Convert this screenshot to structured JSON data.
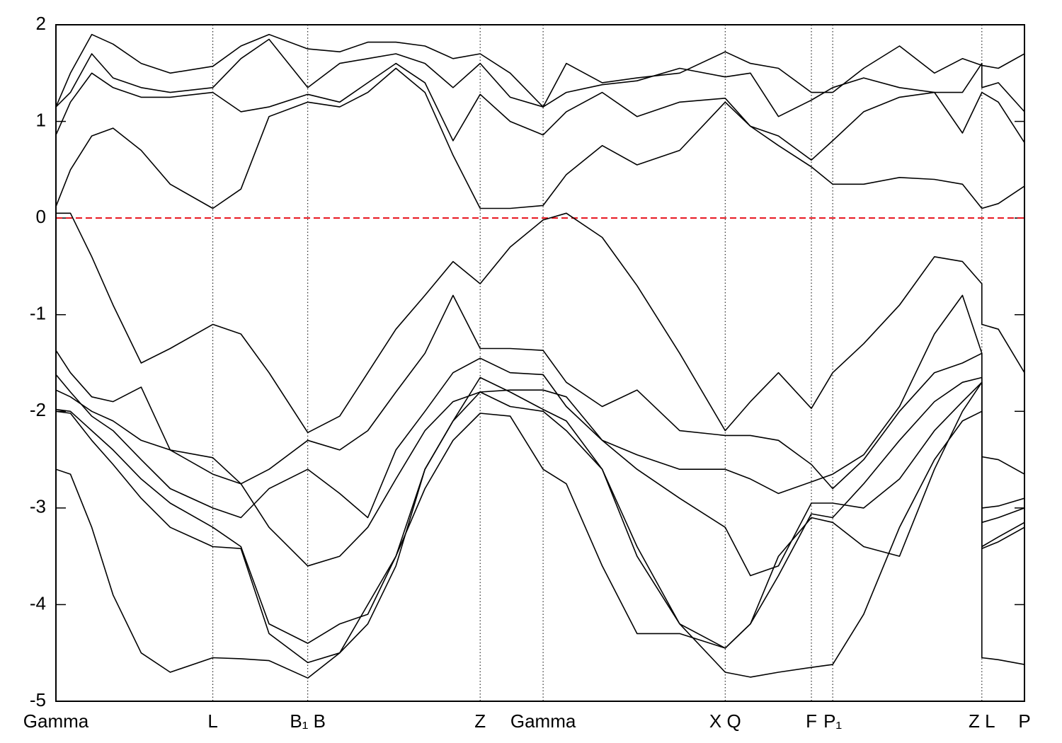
{
  "chart_data": {
    "type": "line",
    "x": [
      0,
      0.015,
      0.037,
      0.059,
      0.088,
      0.118,
      0.162,
      0.191,
      0.22,
      0.26,
      0.293,
      0.322,
      0.351,
      0.381,
      0.41,
      0.438,
      0.469,
      0.503,
      0.527,
      0.564,
      0.6,
      0.644,
      0.691,
      0.717,
      0.746,
      0.78,
      0.802,
      0.834,
      0.871,
      0.907,
      0.936,
      0.956,
      0.956,
      0.973,
      1
    ],
    "xlim": [
      0,
      1
    ],
    "xticks": [
      {
        "value": 0,
        "label": "Gamma"
      },
      {
        "value": 0.162,
        "label": "L"
      },
      {
        "value": 0.26,
        "label": "B₁ B"
      },
      {
        "value": 0.438,
        "label": "Z"
      },
      {
        "value": 0.503,
        "label": "Gamma"
      },
      {
        "value": 0.691,
        "label": "X Q"
      },
      {
        "value": 0.78,
        "label": "F"
      },
      {
        "value": 0.802,
        "label": "P₁"
      },
      {
        "value": 0.956,
        "label": "Z L"
      },
      {
        "value": 1,
        "label": "P"
      }
    ],
    "ylim": [
      -5,
      2
    ],
    "yticks": [
      -5,
      -4,
      -3,
      -2,
      -1,
      0,
      1,
      2
    ],
    "xgrid": true,
    "hline": {
      "value": 0,
      "color": "#e8101a",
      "dashed": true
    },
    "series": [
      {
        "color": "#000000",
        "values": [
          0.05,
          0.05,
          -0.4,
          -0.9,
          -1.5,
          -1.35,
          -1.1,
          -1.2,
          -1.6,
          -2.22,
          -2.05,
          -1.6,
          -1.15,
          -0.8,
          -0.45,
          -0.68,
          -0.3,
          -0.02,
          0.05,
          -0.2,
          -0.7,
          -1.4,
          -2.2,
          -1.9,
          -1.6,
          -1.97,
          -1.6,
          -1.3,
          -0.9,
          -0.4,
          -0.45,
          -0.68,
          -1.1,
          -1.15,
          -1.6
        ]
      },
      {
        "color": "#000000",
        "values": [
          -1.37,
          -1.6,
          -1.85,
          -1.9,
          -1.75,
          -2.4,
          -2.65,
          -2.75,
          -2.6,
          -2.3,
          -2.4,
          -2.2,
          -1.8,
          -1.4,
          -0.8,
          -1.35,
          -1.35,
          -1.37,
          -1.7,
          -1.95,
          -1.78,
          -2.2,
          -2.25,
          -2.25,
          -2.3,
          -2.55,
          -2.8,
          -2.5,
          -2.0,
          -1.6,
          -1.5,
          -1.4,
          -2.47,
          -2.5,
          -2.65
        ]
      },
      {
        "color": "#000000",
        "values": [
          -1.62,
          -1.8,
          -2.05,
          -2.2,
          -2.5,
          -2.8,
          -3.0,
          -3.1,
          -2.8,
          -2.6,
          -2.85,
          -3.1,
          -2.4,
          -2.0,
          -1.6,
          -1.45,
          -1.6,
          -1.62,
          -1.95,
          -2.3,
          -2.45,
          -2.6,
          -2.6,
          -2.7,
          -2.85,
          -2.73,
          -2.65,
          -2.45,
          -1.95,
          -1.2,
          -0.8,
          -1.4,
          -3.0,
          -2.98,
          -2.9
        ]
      },
      {
        "color": "#000000",
        "values": [
          -1.78,
          -1.85,
          -2.0,
          -2.1,
          -2.3,
          -2.4,
          -2.48,
          -2.75,
          -3.2,
          -3.6,
          -3.5,
          -3.2,
          -2.7,
          -2.2,
          -1.9,
          -1.8,
          -1.78,
          -1.78,
          -1.85,
          -2.3,
          -2.6,
          -2.9,
          -3.2,
          -3.7,
          -3.6,
          -2.95,
          -2.95,
          -3.0,
          -2.7,
          -2.2,
          -1.9,
          -1.7,
          -3.15,
          -3.1,
          -3.0
        ]
      },
      {
        "color": "#000000",
        "values": [
          -1.98,
          -2.0,
          -2.2,
          -2.4,
          -2.7,
          -2.95,
          -3.2,
          -3.4,
          -4.2,
          -4.4,
          -4.2,
          -4.1,
          -3.5,
          -2.6,
          -2.1,
          -1.65,
          -1.8,
          -1.98,
          -2.1,
          -2.6,
          -3.5,
          -4.2,
          -4.45,
          -4.2,
          -3.5,
          -3.1,
          -3.15,
          -3.4,
          -3.5,
          -2.6,
          -2.0,
          -1.7,
          -3.4,
          -3.3,
          -3.15
        ]
      },
      {
        "color": "#000000",
        "values": [
          -2.0,
          -2.02,
          -2.3,
          -2.55,
          -2.9,
          -3.2,
          -3.4,
          -3.42,
          -4.3,
          -4.6,
          -4.5,
          -4.2,
          -3.6,
          -2.6,
          -2.1,
          -1.8,
          -1.95,
          -2.0,
          -2.2,
          -2.6,
          -3.4,
          -4.2,
          -4.7,
          -4.75,
          -4.7,
          -4.65,
          -4.62,
          -4.1,
          -3.2,
          -2.5,
          -2.1,
          -2.0,
          -4.55,
          -4.57,
          -4.62
        ]
      },
      {
        "color": "#000000",
        "values": [
          -2.6,
          -2.65,
          -3.2,
          -3.9,
          -4.5,
          -4.7,
          -4.55,
          -4.56,
          -4.58,
          -4.76,
          -4.5,
          -4.0,
          -3.5,
          -2.8,
          -2.3,
          -2.02,
          -2.05,
          -2.6,
          -2.75,
          -3.6,
          -4.3,
          -4.3,
          -4.45,
          -4.2,
          -3.7,
          -3.06,
          -3.1,
          -2.75,
          -2.3,
          -1.9,
          -1.7,
          -1.65,
          -3.42,
          -3.35,
          -3.2
        ]
      },
      {
        "color": "#000000",
        "values": [
          0.12,
          0.5,
          0.85,
          0.93,
          0.7,
          0.35,
          0.1,
          0.3,
          1.05,
          1.2,
          1.15,
          1.3,
          1.55,
          1.3,
          0.65,
          0.1,
          0.1,
          0.13,
          0.45,
          0.75,
          0.55,
          0.7,
          1.2,
          0.95,
          0.75,
          0.53,
          0.35,
          0.35,
          0.42,
          0.4,
          0.35,
          0.1,
          0.1,
          0.15,
          0.33
        ]
      },
      {
        "color": "#000000",
        "values": [
          0.86,
          1.2,
          1.5,
          1.35,
          1.25,
          1.25,
          1.3,
          1.1,
          1.15,
          1.28,
          1.2,
          1.4,
          1.6,
          1.4,
          0.8,
          1.28,
          1.0,
          0.86,
          1.1,
          1.3,
          1.05,
          1.2,
          1.24,
          0.95,
          0.85,
          0.6,
          0.8,
          1.1,
          1.25,
          1.3,
          0.88,
          1.3,
          1.3,
          1.2,
          0.78
        ]
      },
      {
        "color": "#000000",
        "values": [
          1.15,
          1.3,
          1.7,
          1.45,
          1.35,
          1.3,
          1.35,
          1.65,
          1.85,
          1.35,
          1.6,
          1.65,
          1.7,
          1.6,
          1.35,
          1.6,
          1.25,
          1.15,
          1.3,
          1.38,
          1.42,
          1.55,
          1.46,
          1.5,
          1.05,
          1.22,
          1.35,
          1.45,
          1.35,
          1.3,
          1.3,
          1.6,
          1.35,
          1.4,
          1.1
        ]
      },
      {
        "color": "#000000",
        "values": [
          1.15,
          1.5,
          1.9,
          1.8,
          1.6,
          1.5,
          1.57,
          1.78,
          1.9,
          1.75,
          1.72,
          1.82,
          1.82,
          1.78,
          1.65,
          1.7,
          1.5,
          1.15,
          1.6,
          1.4,
          1.45,
          1.5,
          1.72,
          1.6,
          1.55,
          1.3,
          1.3,
          1.55,
          1.78,
          1.5,
          1.65,
          1.58,
          1.58,
          1.55,
          1.7
        ]
      }
    ]
  }
}
